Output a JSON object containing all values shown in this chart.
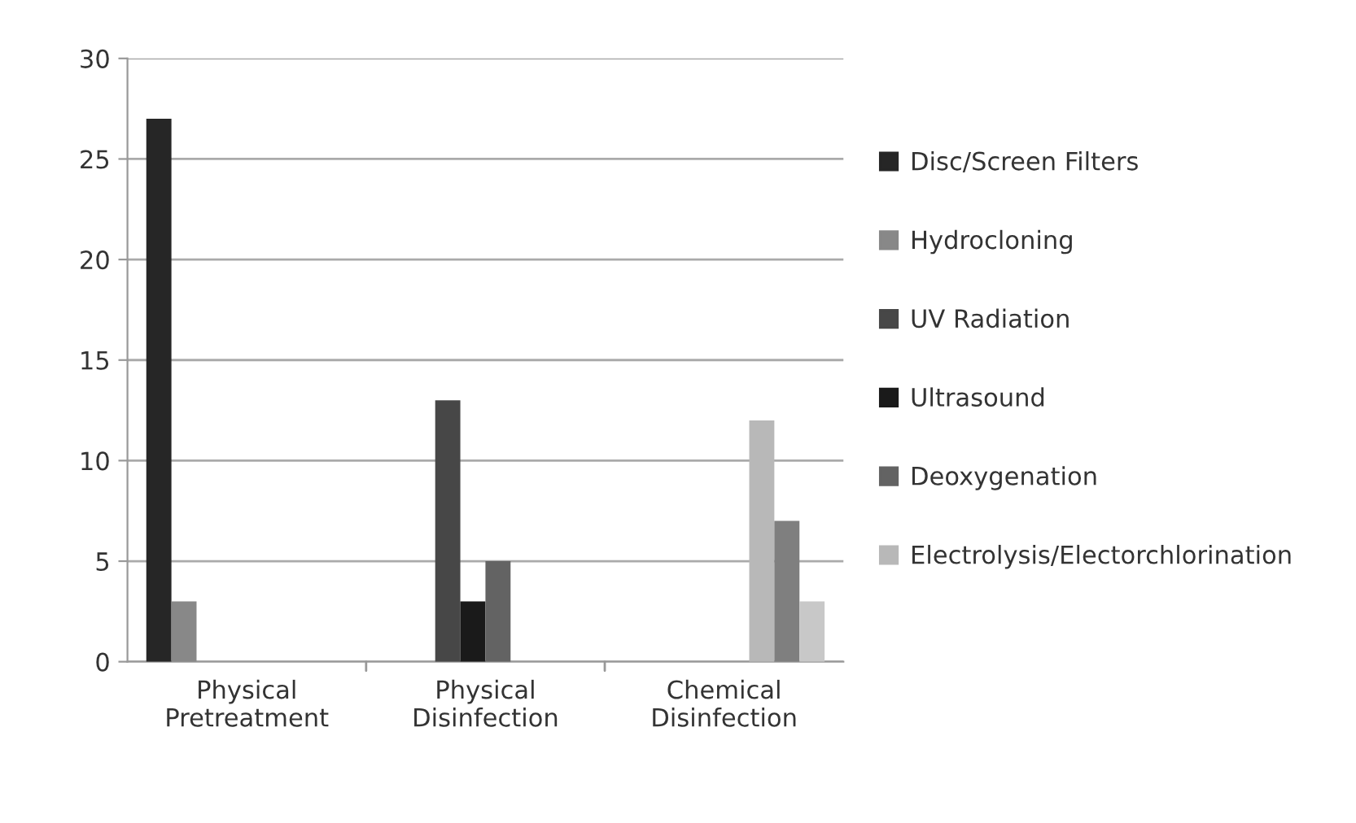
{
  "chart_data": {
    "type": "bar",
    "categories": [
      "Physical\nPretreatment",
      "Physical\nDisinfection",
      "Chemical\nDisinfection"
    ],
    "series": [
      {
        "name": "Disc/Screen Filters",
        "color": "#262626",
        "values": [
          27,
          null,
          null
        ]
      },
      {
        "name": "Hydrocloning",
        "color": "#888888",
        "values": [
          3,
          null,
          null
        ]
      },
      {
        "name": "UV Radiation",
        "color": "#474747",
        "values": [
          null,
          13,
          null
        ]
      },
      {
        "name": "Ultrasound",
        "color": "#1a1a1a",
        "values": [
          null,
          3,
          null
        ]
      },
      {
        "name": "Deoxygenation",
        "color": "#636363",
        "values": [
          null,
          5,
          null
        ]
      },
      {
        "name": "Electrolysis/Electorchlorination",
        "color": "#b8b8b8",
        "values": [
          null,
          null,
          12
        ]
      },
      {
        "color": "#7f7f7f",
        "values": [
          null,
          null,
          7
        ]
      },
      {
        "color": "#c8c8c8",
        "values": [
          null,
          null,
          3
        ]
      }
    ],
    "ylim": [
      0,
      30
    ],
    "yticks": [
      0,
      5,
      10,
      15,
      20,
      25,
      30
    ],
    "grid": "y",
    "legend": "right"
  }
}
